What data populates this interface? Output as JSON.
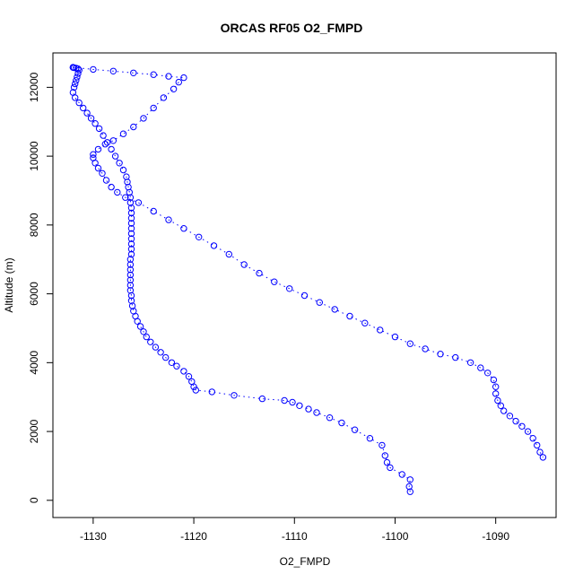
{
  "chart_data": {
    "type": "scatter",
    "title": "ORCAS RF05 O2_FMPD",
    "xlabel": "O2_FMPD",
    "ylabel": "Altitude (m)",
    "xlim": [
      -1134,
      -1084
    ],
    "ylim": [
      -500,
      13000
    ],
    "x_ticks": [
      -1130,
      -1120,
      -1110,
      -1100,
      -1090
    ],
    "x_tick_labels": [
      "-1130",
      "-1120",
      "-1110",
      "-1100",
      "-1090"
    ],
    "y_ticks": [
      0,
      2000,
      4000,
      6000,
      8000,
      10000,
      12000
    ],
    "y_tick_labels": [
      "0",
      "2000",
      "4000",
      "6000",
      "8000",
      "10000",
      "12000"
    ],
    "grid": false,
    "marker": "open-circle",
    "marker_color": "#0000ff",
    "line_style": "dotted-connect",
    "series": [
      {
        "x": [
          -1098.5,
          -1098.6,
          -1098.5,
          -1099.3,
          -1100.5,
          -1100.8,
          -1101.0,
          -1101.3,
          -1102.5,
          -1104.0,
          -1105.3,
          -1106.5,
          -1107.8,
          -1108.6,
          -1109.5,
          -1110.2,
          -1111.0,
          -1113.2,
          -1116.0,
          -1118.2,
          -1119.8,
          -1120.0,
          -1120.2,
          -1120.5,
          -1121.0,
          -1121.7,
          -1122.2,
          -1122.8,
          -1123.3,
          -1123.8,
          -1124.3,
          -1124.7,
          -1125.0,
          -1125.3,
          -1125.6,
          -1125.8,
          -1126.0,
          -1126.1,
          -1126.2,
          -1126.2,
          -1126.3,
          -1126.3,
          -1126.3,
          -1126.3,
          -1126.3,
          -1126.3,
          -1126.3,
          -1126.2,
          -1126.2,
          -1126.2,
          -1126.2,
          -1126.2,
          -1126.2,
          -1126.2,
          -1126.2,
          -1126.2,
          -1126.2,
          -1126.3,
          -1126.3,
          -1126.4,
          -1126.5,
          -1126.6,
          -1126.7,
          -1127.0,
          -1127.4,
          -1127.8,
          -1128.2,
          -1128.6,
          -1129.0,
          -1129.4,
          -1129.8,
          -1130.2,
          -1130.6,
          -1131.0,
          -1131.4,
          -1131.8,
          -1132.0,
          -1131.9,
          -1131.8,
          -1131.7,
          -1131.6,
          -1131.5,
          -1131.4,
          -1131.5,
          -1131.7,
          -1131.9,
          -1132.0
        ],
        "y": [
          250,
          400,
          600,
          750,
          950,
          1100,
          1300,
          1600,
          1800,
          2050,
          2250,
          2400,
          2550,
          2650,
          2750,
          2850,
          2900,
          2950,
          3050,
          3150,
          3200,
          3300,
          3450,
          3600,
          3750,
          3900,
          4000,
          4150,
          4300,
          4450,
          4600,
          4750,
          4900,
          5050,
          5200,
          5350,
          5500,
          5650,
          5800,
          5950,
          6100,
          6250,
          6400,
          6550,
          6700,
          6850,
          7000,
          7150,
          7300,
          7450,
          7600,
          7750,
          7900,
          8050,
          8200,
          8350,
          8500,
          8650,
          8800,
          8950,
          9100,
          9250,
          9400,
          9600,
          9800,
          10000,
          10200,
          10400,
          10600,
          10800,
          10950,
          11100,
          11250,
          11400,
          11550,
          11700,
          11850,
          12000,
          12100,
          12200,
          12300,
          12400,
          12500,
          12540,
          12560,
          12570,
          12580
        ]
      },
      {
        "x": [
          -1132.0,
          -1130.0,
          -1128.0,
          -1126.0,
          -1124.0,
          -1122.5,
          -1121.0
        ],
        "y": [
          12580,
          12520,
          12470,
          12420,
          12370,
          12320,
          12280
        ]
      },
      {
        "x": [
          -1121.5,
          -1122.0,
          -1123.0,
          -1124.0,
          -1125.0,
          -1126.0,
          -1127.0,
          -1128.0,
          -1128.8,
          -1129.5,
          -1130.0,
          -1130.0,
          -1129.8,
          -1129.5,
          -1129.1,
          -1128.7,
          -1128.2,
          -1127.6,
          -1126.8,
          -1125.5,
          -1124.0,
          -1122.5,
          -1121.0,
          -1119.5,
          -1118.0,
          -1116.5,
          -1115.0,
          -1113.5,
          -1112.0,
          -1110.5,
          -1109.0,
          -1107.5,
          -1106.0,
          -1104.5,
          -1103.0,
          -1101.5,
          -1100.0,
          -1098.5,
          -1097.0,
          -1095.5,
          -1094.0,
          -1092.5,
          -1091.5,
          -1090.8,
          -1090.2,
          -1090.0,
          -1090.0,
          -1089.8,
          -1089.5,
          -1089.2,
          -1088.6,
          -1088.0,
          -1087.4,
          -1086.8,
          -1086.3,
          -1085.9,
          -1085.6,
          -1085.3
        ],
        "y": [
          12150,
          11950,
          11700,
          11400,
          11100,
          10850,
          10650,
          10450,
          10350,
          10200,
          10050,
          9950,
          9800,
          9650,
          9500,
          9300,
          9100,
          8950,
          8800,
          8650,
          8400,
          8150,
          7900,
          7650,
          7400,
          7150,
          6850,
          6600,
          6350,
          6150,
          5950,
          5750,
          5550,
          5350,
          5150,
          4950,
          4750,
          4550,
          4400,
          4250,
          4150,
          4000,
          3850,
          3700,
          3500,
          3300,
          3100,
          2900,
          2750,
          2600,
          2450,
          2300,
          2150,
          2000,
          1800,
          1600,
          1400,
          1250
        ]
      }
    ]
  }
}
